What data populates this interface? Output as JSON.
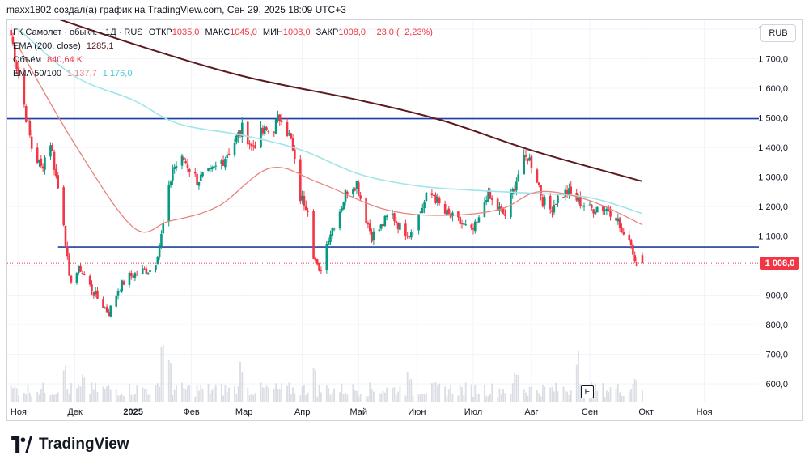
{
  "header": {
    "text": "maxx1802 создал(а) график на TradingView.com, Сен 29, 2025 18:09 UTC+3"
  },
  "legend": {
    "symbol": "ГК Самолет · обыкн. · 1Д · RUS",
    "ohlc": [
      {
        "label": "ОТКР",
        "value": "1035,0"
      },
      {
        "label": "МАКС",
        "value": "1045,0"
      },
      {
        "label": "МИН",
        "value": "1008,0"
      },
      {
        "label": "ЗАКР",
        "value": "1008,0"
      }
    ],
    "change": "−23,0 (−2,23%)",
    "ema200": {
      "label": "EMA (200, close)",
      "value": "1285,1"
    },
    "volume": {
      "label": "Объём",
      "value": "840,64 K"
    },
    "ema50_100": {
      "label": "EMA 50/100",
      "value1": "1 137,7",
      "value2": "1 176,0"
    }
  },
  "currency": "RUB",
  "events_button": "E",
  "brand": "TradingView",
  "colors": {
    "up": "#089981",
    "down": "#f23645",
    "ema200": "#5c1a1f",
    "ema50": "#e8837d",
    "ema100": "#9ee6ea",
    "level": "#1f3fa3",
    "volume": "#d1d4dc"
  },
  "chart_data": {
    "type": "candlestick",
    "y_axis": {
      "ticks": [
        600,
        700,
        800,
        900,
        1000,
        1100,
        1200,
        1300,
        1400,
        1500,
        1600,
        1700,
        1800
      ],
      "tick_labels": [
        "600,0",
        "700,0",
        "800,0",
        "900,0",
        "",
        "1 100,0",
        "1 200,0",
        "1 300,0",
        "1 400,0",
        "1 500,0",
        "1 600,0",
        "1 700,0",
        "1 800,0"
      ],
      "range": [
        540,
        1830
      ]
    },
    "x_axis": {
      "labels": [
        "Ноя",
        "Дек",
        "2025",
        "Фев",
        "Мар",
        "Апр",
        "Май",
        "Июн",
        "Июл",
        "Авг",
        "Сен",
        "Окт",
        "Ноя"
      ],
      "dates": [
        "2024-11-01",
        "2024-12-01",
        "2025-01-01",
        "2025-02-01",
        "2025-03-01",
        "2025-04-01",
        "2025-05-01",
        "2025-06-01",
        "2025-07-01",
        "2025-08-01",
        "2025-09-01",
        "2025-10-01",
        "2025-11-01"
      ],
      "range": [
        "2024-10-26",
        "2025-11-30"
      ]
    },
    "horizontal_levels": [
      1497,
      1063
    ],
    "last_price": {
      "value": 1008,
      "label": "1 008,0"
    },
    "price_anchors": [
      [
        "2024-10-28",
        1780
      ],
      [
        "2024-11-03",
        1580
      ],
      [
        "2024-11-08",
        1400
      ],
      [
        "2024-11-13",
        1330
      ],
      [
        "2024-11-18",
        1420
      ],
      [
        "2024-11-21",
        1300
      ],
      [
        "2024-11-25",
        1150
      ],
      [
        "2024-11-28",
        950
      ],
      [
        "2024-12-04",
        990
      ],
      [
        "2024-12-09",
        930
      ],
      [
        "2024-12-14",
        880
      ],
      [
        "2024-12-19",
        840
      ],
      [
        "2024-12-24",
        920
      ],
      [
        "2024-12-29",
        960
      ],
      [
        "2025-01-05",
        980
      ],
      [
        "2025-01-12",
        990
      ],
      [
        "2025-01-16",
        1100
      ],
      [
        "2025-01-22",
        1330
      ],
      [
        "2025-01-28",
        1360
      ],
      [
        "2025-02-04",
        1290
      ],
      [
        "2025-02-11",
        1310
      ],
      [
        "2025-02-18",
        1360
      ],
      [
        "2025-02-24",
        1420
      ],
      [
        "2025-03-01",
        1470
      ],
      [
        "2025-03-05",
        1400
      ],
      [
        "2025-03-11",
        1450
      ],
      [
        "2025-03-16",
        1460
      ],
      [
        "2025-03-21",
        1510
      ],
      [
        "2025-03-26",
        1420
      ],
      [
        "2025-03-31",
        1230
      ],
      [
        "2025-04-04",
        1200
      ],
      [
        "2025-04-07",
        1040
      ],
      [
        "2025-04-10",
        970
      ],
      [
        "2025-04-15",
        1100
      ],
      [
        "2025-04-20",
        1170
      ],
      [
        "2025-04-25",
        1260
      ],
      [
        "2025-04-30",
        1280
      ],
      [
        "2025-05-04",
        1180
      ],
      [
        "2025-05-08",
        1100
      ],
      [
        "2025-05-13",
        1130
      ],
      [
        "2025-05-18",
        1180
      ],
      [
        "2025-05-23",
        1130
      ],
      [
        "2025-05-28",
        1110
      ],
      [
        "2025-06-02",
        1170
      ],
      [
        "2025-06-06",
        1230
      ],
      [
        "2025-06-10",
        1240
      ],
      [
        "2025-06-15",
        1180
      ],
      [
        "2025-06-20",
        1160
      ],
      [
        "2025-06-25",
        1140
      ],
      [
        "2025-06-30",
        1110
      ],
      [
        "2025-07-04",
        1150
      ],
      [
        "2025-07-08",
        1240
      ],
      [
        "2025-07-13",
        1200
      ],
      [
        "2025-07-18",
        1170
      ],
      [
        "2025-07-22",
        1250
      ],
      [
        "2025-07-26",
        1330
      ],
      [
        "2025-07-30",
        1370
      ],
      [
        "2025-08-03",
        1320
      ],
      [
        "2025-08-07",
        1220
      ],
      [
        "2025-08-11",
        1190
      ],
      [
        "2025-08-15",
        1230
      ],
      [
        "2025-08-20",
        1250
      ],
      [
        "2025-08-24",
        1230
      ],
      [
        "2025-08-28",
        1210
      ],
      [
        "2025-09-01",
        1190
      ],
      [
        "2025-09-06",
        1200
      ],
      [
        "2025-09-11",
        1190
      ],
      [
        "2025-09-15",
        1170
      ],
      [
        "2025-09-19",
        1090
      ],
      [
        "2025-09-22",
        1100
      ],
      [
        "2025-09-25",
        1020
      ],
      [
        "2025-09-29",
        1008
      ]
    ],
    "ema200_points": [
      [
        "2024-11-01",
        1880
      ],
      [
        "2025-01-01",
        1750
      ],
      [
        "2025-03-01",
        1640
      ],
      [
        "2025-05-01",
        1560
      ],
      [
        "2025-06-15",
        1490
      ],
      [
        "2025-08-01",
        1390
      ],
      [
        "2025-09-29",
        1285
      ]
    ],
    "ema100_points": [
      [
        "2024-11-01",
        1800
      ],
      [
        "2024-12-01",
        1640
      ],
      [
        "2025-01-01",
        1560
      ],
      [
        "2025-01-25",
        1480
      ],
      [
        "2025-03-01",
        1440
      ],
      [
        "2025-04-01",
        1390
      ],
      [
        "2025-05-01",
        1310
      ],
      [
        "2025-06-01",
        1270
      ],
      [
        "2025-07-01",
        1255
      ],
      [
        "2025-08-01",
        1245
      ],
      [
        "2025-09-01",
        1230
      ],
      [
        "2025-09-29",
        1176
      ]
    ],
    "ema50_points": [
      [
        "2024-11-01",
        1740
      ],
      [
        "2024-12-01",
        1410
      ],
      [
        "2025-01-01",
        1130
      ],
      [
        "2025-01-20",
        1150
      ],
      [
        "2025-02-15",
        1200
      ],
      [
        "2025-03-15",
        1330
      ],
      [
        "2025-04-10",
        1280
      ],
      [
        "2025-05-15",
        1190
      ],
      [
        "2025-06-15",
        1170
      ],
      [
        "2025-07-15",
        1190
      ],
      [
        "2025-08-05",
        1250
      ],
      [
        "2025-09-01",
        1220
      ],
      [
        "2025-09-29",
        1138
      ]
    ],
    "volume_spikes": [
      [
        "2024-11-25",
        0.55
      ],
      [
        "2024-12-06",
        0.35
      ],
      [
        "2025-01-17",
        0.85
      ],
      [
        "2025-01-20",
        0.6
      ],
      [
        "2025-02-28",
        0.55
      ],
      [
        "2025-04-07",
        0.5
      ],
      [
        "2025-05-28",
        0.4
      ],
      [
        "2025-07-24",
        0.45
      ],
      [
        "2025-08-25",
        0.7
      ],
      [
        "2025-09-25",
        0.3
      ]
    ]
  }
}
